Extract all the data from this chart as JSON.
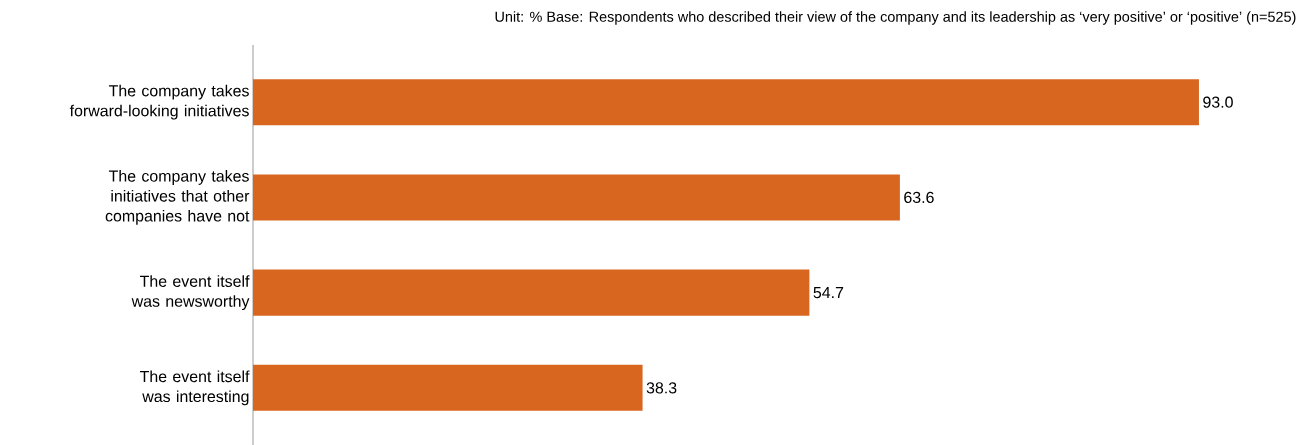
{
  "chart_data": {
    "type": "bar",
    "orientation": "horizontal",
    "title": "Unit: % Base: Respondents who described their view of the company and its leadership as ‘very positive’ or ‘positive’ (n=525)",
    "categories": [
      "The company takes forward-looking initiatives",
      "The company takes initiatives that other companies have not",
      "The event itself was newsworthy",
      "The event itself was interesting"
    ],
    "values": [
      93.0,
      63.6,
      54.7,
      38.3
    ],
    "value_labels": [
      "93.0",
      "63.6",
      "54.7",
      "38.3"
    ],
    "color": "#d9661f"
  }
}
